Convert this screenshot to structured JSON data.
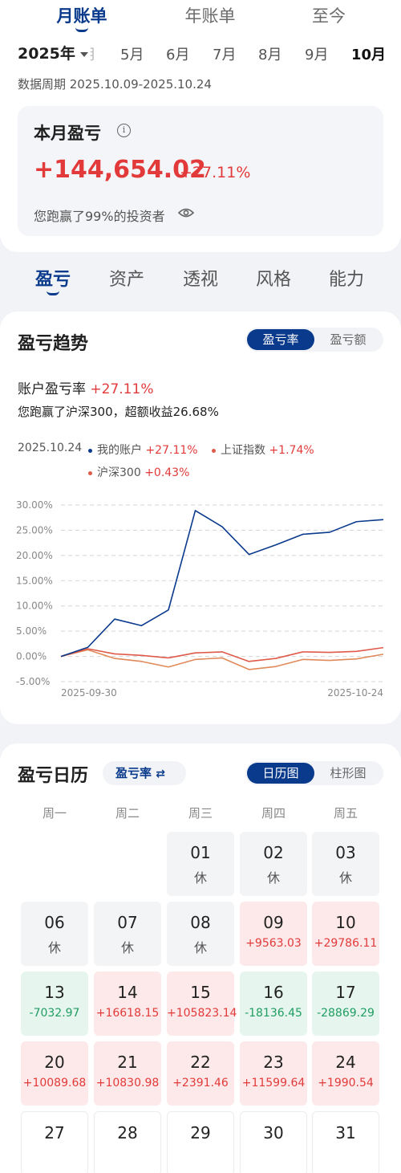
{
  "top_tabs": [
    {
      "label": "月账单",
      "active": true
    },
    {
      "label": "年账单",
      "active": false
    },
    {
      "label": "至今",
      "active": false
    }
  ],
  "year_select": "2025年",
  "month_partial": "月",
  "months": [
    "5月",
    "6月",
    "7月",
    "8月",
    "9月",
    "10月"
  ],
  "active_month": "10月",
  "period": "数据周期 2025.10.09-2025.10.24",
  "summary": {
    "title": "本月盈亏",
    "info_glyph": "i",
    "amount": "+144,654.02",
    "pct": "+27.11%",
    "beat": "您跑赢了99%的投资者"
  },
  "section_tabs": [
    "盈亏",
    "资产",
    "透视",
    "风格",
    "能力"
  ],
  "trend": {
    "title": "盈亏趋势",
    "toggle": [
      "盈亏率",
      "盈亏额"
    ],
    "acct_label": "账户盈亏率",
    "acct_value": "+27.11%",
    "beat_line": "您跑赢了沪深300，超额收益26.68%",
    "legend_date": "2025.10.24",
    "legend": [
      {
        "name": "我的账户",
        "value": "+27.11%",
        "color": "#0a3a8c"
      },
      {
        "name": "上证指数",
        "value": "+1.74%",
        "color": "#e05a4a"
      },
      {
        "name": "沪深300",
        "value": "+0.43%",
        "color": "#e08a5a"
      }
    ]
  },
  "chart_data": {
    "type": "line",
    "x": [
      "2025-09-30",
      "2025-10-09",
      "2025-10-10",
      "2025-10-13",
      "2025-10-14",
      "2025-10-15",
      "2025-10-16",
      "2025-10-17",
      "2025-10-20",
      "2025-10-21",
      "2025-10-22",
      "2025-10-23",
      "2025-10-24"
    ],
    "x_tick_labels": [
      "2025-09-30",
      "2025-10-24"
    ],
    "ylim": [
      -5,
      30
    ],
    "y_ticks": [
      "30.00%",
      "25.00%",
      "20.00%",
      "15.00%",
      "10.00%",
      "5.00%",
      "0.00%",
      "-5.00%"
    ],
    "grid": true,
    "series": [
      {
        "name": "我的账户",
        "color": "#0a3a8c",
        "values": [
          0,
          1.8,
          7.4,
          6.1,
          9.2,
          28.9,
          25.7,
          20.2,
          22.1,
          24.2,
          24.6,
          26.7,
          27.11
        ]
      },
      {
        "name": "上证指数",
        "color": "#e05a4a",
        "values": [
          0,
          1.5,
          0.5,
          0.2,
          -0.3,
          0.7,
          0.9,
          -1.0,
          -0.4,
          0.9,
          0.8,
          1.0,
          1.74
        ]
      },
      {
        "name": "沪深300",
        "color": "#e08a5a",
        "values": [
          0,
          1.3,
          -0.4,
          -1.0,
          -2.1,
          -0.6,
          -0.3,
          -2.6,
          -2.0,
          -0.6,
          -0.8,
          -0.5,
          0.43
        ]
      }
    ]
  },
  "calendar": {
    "title": "盈亏日历",
    "mode": "盈亏率",
    "mode_glyph": "⇄",
    "view_toggle": [
      "日历图",
      "柱形图"
    ],
    "weekdays": [
      "周一",
      "周二",
      "周三",
      "周四",
      "周五"
    ],
    "weeks": [
      [
        null,
        null,
        {
          "day": "01",
          "val": "休",
          "kind": "rest"
        },
        {
          "day": "02",
          "val": "休",
          "kind": "rest"
        },
        {
          "day": "03",
          "val": "休",
          "kind": "rest"
        }
      ],
      [
        {
          "day": "06",
          "val": "休",
          "kind": "rest"
        },
        {
          "day": "07",
          "val": "休",
          "kind": "rest"
        },
        {
          "day": "08",
          "val": "休",
          "kind": "rest"
        },
        {
          "day": "09",
          "val": "+9563.03",
          "kind": "gain"
        },
        {
          "day": "10",
          "val": "+29786.11",
          "kind": "gain"
        }
      ],
      [
        {
          "day": "13",
          "val": "-7032.97",
          "kind": "loss"
        },
        {
          "day": "14",
          "val": "+16618.15",
          "kind": "gain"
        },
        {
          "day": "15",
          "val": "+105823.14",
          "kind": "gain"
        },
        {
          "day": "16",
          "val": "-18136.45",
          "kind": "loss"
        },
        {
          "day": "17",
          "val": "-28869.29",
          "kind": "loss"
        }
      ],
      [
        {
          "day": "20",
          "val": "+10089.68",
          "kind": "gain"
        },
        {
          "day": "21",
          "val": "+10830.98",
          "kind": "gain"
        },
        {
          "day": "22",
          "val": "+2391.46",
          "kind": "gain"
        },
        {
          "day": "23",
          "val": "+11599.64",
          "kind": "gain"
        },
        {
          "day": "24",
          "val": "+1990.54",
          "kind": "gain"
        }
      ],
      [
        {
          "day": "27",
          "val": "",
          "kind": "empty"
        },
        {
          "day": "28",
          "val": "",
          "kind": "empty"
        },
        {
          "day": "29",
          "val": "",
          "kind": "empty"
        },
        {
          "day": "30",
          "val": "",
          "kind": "empty"
        },
        {
          "day": "31",
          "val": "",
          "kind": "empty"
        }
      ]
    ]
  }
}
